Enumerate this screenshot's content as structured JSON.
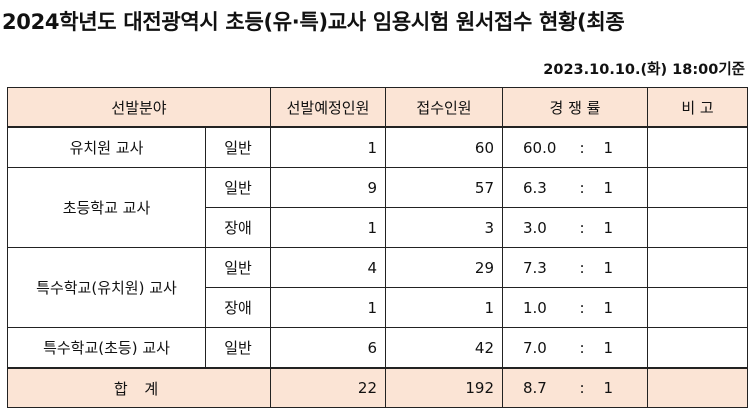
{
  "title": "2024학년도 대전광역시 초등(유·특)교사 임용시험 원서접수 현황(최종",
  "date_note": "2023.10.10.(화) 18:00기준",
  "table": {
    "headers": {
      "field": "선발분야",
      "planned": "선발예정인원",
      "applicants": "접수인원",
      "ratio": "경 쟁 률",
      "remarks": "비 고"
    },
    "rows": [
      {
        "field": "유치원 교사",
        "type": "일반",
        "planned": "1",
        "applicants": "60",
        "ratio": "60.0",
        "sep": ":",
        "base": "1"
      },
      {
        "field": "초등학교 교사",
        "type": "일반",
        "planned": "9",
        "applicants": "57",
        "ratio": "6.3",
        "sep": ":",
        "base": "1"
      },
      {
        "field": "",
        "type": "장애",
        "planned": "1",
        "applicants": "3",
        "ratio": "3.0",
        "sep": ":",
        "base": "1"
      },
      {
        "field": "특수학교(유치원) 교사",
        "type": "일반",
        "planned": "4",
        "applicants": "29",
        "ratio": "7.3",
        "sep": ":",
        "base": "1"
      },
      {
        "field": "",
        "type": "장애",
        "planned": "1",
        "applicants": "1",
        "ratio": "1.0",
        "sep": ":",
        "base": "1"
      },
      {
        "field": "특수학교(초등) 교사",
        "type": "일반",
        "planned": "6",
        "applicants": "42",
        "ratio": "7.0",
        "sep": ":",
        "base": "1"
      }
    ],
    "total": {
      "label": "합 계",
      "planned": "22",
      "applicants": "192",
      "ratio": "8.7",
      "sep": ":",
      "base": "1"
    }
  }
}
